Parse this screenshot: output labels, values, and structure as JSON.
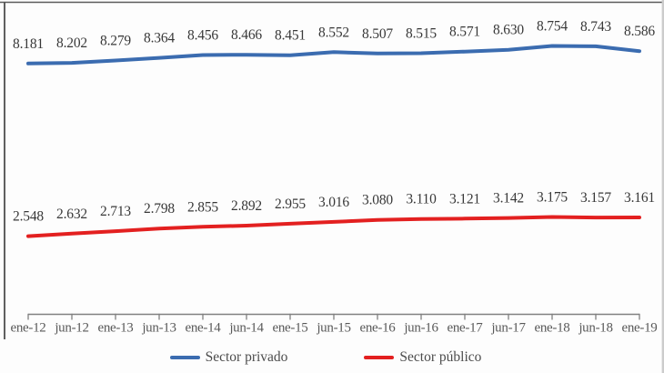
{
  "chart_data": {
    "type": "line",
    "title": "",
    "xlabel": "",
    "ylabel": "",
    "grid": false,
    "legend_position": "bottom",
    "ylim": [
      0,
      10.3
    ],
    "value_label_format": "3-decimals (Spanish thousands style, e.g. 8.181)",
    "categories": [
      "ene-12",
      "jun-12",
      "ene-13",
      "jun-13",
      "ene-14",
      "jun-14",
      "ene-15",
      "jun-15",
      "ene-16",
      "jun-16",
      "ene-17",
      "jun-17",
      "ene-18",
      "jun-18",
      "ene-19"
    ],
    "series": [
      {
        "name": "Sector privado",
        "color": "#3b6cb0",
        "values": [
          8.181,
          8.202,
          8.279,
          8.364,
          8.456,
          8.466,
          8.451,
          8.552,
          8.507,
          8.515,
          8.571,
          8.63,
          8.754,
          8.743,
          8.586
        ]
      },
      {
        "name": "Sector público",
        "color": "#e32020",
        "values": [
          2.548,
          2.632,
          2.713,
          2.798,
          2.855,
          2.892,
          2.955,
          3.016,
          3.08,
          3.11,
          3.121,
          3.142,
          3.175,
          3.157,
          3.161
        ]
      }
    ]
  },
  "colors": {
    "axis": "#808080",
    "data_label": "#383838",
    "x_label": "#595959",
    "top_border": "#5b5b5b",
    "left_border": "#4f4f4f",
    "right_border": "#cccccc",
    "background": "#fdfdfd"
  }
}
